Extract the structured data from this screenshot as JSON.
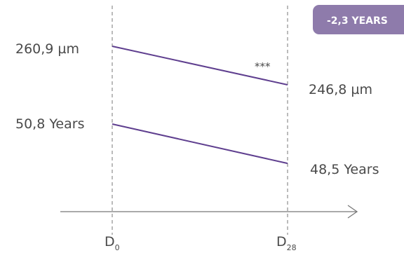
{
  "badge": {
    "text": "-2,3 YEARS",
    "color": "#8e7bab"
  },
  "colors": {
    "line": "#5f3f8f",
    "axis": "#777777",
    "text": "#4a4a4a"
  },
  "chart_data": {
    "type": "line",
    "categories": [
      "D0",
      "D28"
    ],
    "x_tick_labels": [
      {
        "base": "D",
        "sub": "0"
      },
      {
        "base": "D",
        "sub": "28"
      }
    ],
    "series": [
      {
        "values": [
          260.9,
          246.8
        ],
        "start_label": "260,9 µm",
        "end_label": "246,8 µm",
        "annotation": "***"
      },
      {
        "values": [
          50.8,
          48.5
        ],
        "start_label": "50,8 Years",
        "end_label": "48,5 Years"
      }
    ],
    "grid": false,
    "reference_lines": "dashed vertical at each timepoint"
  }
}
